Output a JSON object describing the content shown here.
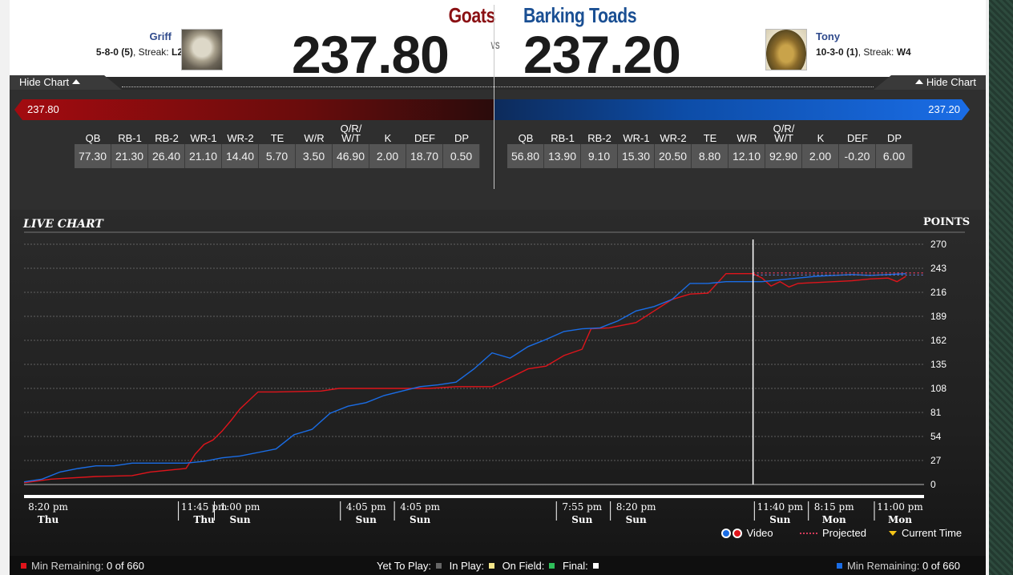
{
  "header": {
    "left": {
      "team": "Goats",
      "score": "237.80",
      "owner": "Griff",
      "record": "5-8-0",
      "rank": "(5)",
      "streak_label": ", Streak: ",
      "streak": "L2"
    },
    "vs": "VS",
    "right": {
      "team": "Barking Toads",
      "score": "237.20",
      "owner": "Tony",
      "record": "10-3-0",
      "rank": "(1)",
      "streak_label": ", Streak: ",
      "streak": "W4"
    }
  },
  "tabs": {
    "left": "Hide Chart",
    "right": "Hide Chart"
  },
  "bars": {
    "left": "237.80",
    "right": "237.20"
  },
  "stats": {
    "headers": [
      "QB",
      "RB-1",
      "RB-2",
      "WR-1",
      "WR-2",
      "TE",
      "W/R",
      "Q/R/\nW/T",
      "K",
      "DEF",
      "DP"
    ],
    "left": [
      "77.30",
      "21.30",
      "26.40",
      "21.10",
      "14.40",
      "5.70",
      "3.50",
      "46.90",
      "2.00",
      "18.70",
      "0.50"
    ],
    "right": [
      "56.80",
      "13.90",
      "9.10",
      "15.30",
      "20.50",
      "8.80",
      "12.10",
      "92.90",
      "2.00",
      "-0.20",
      "6.00"
    ]
  },
  "chart": {
    "title": "LIVE CHART",
    "points_label": "POINTS",
    "legend": {
      "video": "Video",
      "projected": "Projected",
      "current_time": "Current Time"
    }
  },
  "chart_data": {
    "type": "line",
    "title": "LIVE CHART",
    "ylabel": "POINTS",
    "ylim": [
      0,
      270
    ],
    "y_ticks": [
      0,
      27,
      54,
      81,
      108,
      135,
      162,
      189,
      216,
      243,
      270
    ],
    "x_ticks": [
      {
        "time": "8:20 pm",
        "day": "Thu"
      },
      {
        "time": "11:45 pm",
        "day": "Thu"
      },
      {
        "time": "1:00 pm",
        "day": "Sun"
      },
      {
        "time": "4:05 pm",
        "day": "Sun"
      },
      {
        "time": "4:05 pm",
        "day": "Sun"
      },
      {
        "time": "7:55 pm",
        "day": "Sun"
      },
      {
        "time": "8:20 pm",
        "day": "Sun"
      },
      {
        "time": "11:40 pm",
        "day": "Sun"
      },
      {
        "time": "8:15 pm",
        "day": "Mon"
      },
      {
        "time": "11:00 pm",
        "day": "Mon"
      }
    ],
    "x_range": [
      0,
      100
    ],
    "current_time_x": 81,
    "series": [
      {
        "name": "Goats",
        "color": "#e0141b",
        "points": [
          [
            0,
            2
          ],
          [
            3,
            6
          ],
          [
            8,
            9
          ],
          [
            12,
            10
          ],
          [
            14,
            14
          ],
          [
            16,
            16
          ],
          [
            18,
            18
          ],
          [
            19,
            34
          ],
          [
            20,
            45
          ],
          [
            21,
            50
          ],
          [
            22,
            60
          ],
          [
            23,
            72
          ],
          [
            24,
            85
          ],
          [
            26,
            104
          ],
          [
            28,
            104
          ],
          [
            33,
            105
          ],
          [
            35,
            108
          ],
          [
            45,
            108
          ],
          [
            48,
            110
          ],
          [
            52,
            110
          ],
          [
            54,
            120
          ],
          [
            56,
            130
          ],
          [
            58,
            133
          ],
          [
            60,
            145
          ],
          [
            62,
            152
          ],
          [
            63,
            175
          ],
          [
            65,
            176
          ],
          [
            68,
            182
          ],
          [
            70,
            195
          ],
          [
            72,
            208
          ],
          [
            74,
            214
          ],
          [
            76,
            215
          ],
          [
            78,
            237
          ],
          [
            80,
            237
          ],
          [
            81,
            237
          ],
          [
            82,
            232
          ],
          [
            83,
            223
          ],
          [
            84,
            228
          ],
          [
            85,
            222
          ],
          [
            86,
            226
          ],
          [
            88,
            227
          ],
          [
            90,
            228
          ],
          [
            92,
            229
          ],
          [
            94,
            231
          ],
          [
            96,
            232
          ],
          [
            97,
            228
          ],
          [
            98,
            234
          ]
        ]
      },
      {
        "name": "Barking Toads",
        "color": "#1a6de6",
        "points": [
          [
            0,
            3
          ],
          [
            2,
            6
          ],
          [
            4,
            14
          ],
          [
            6,
            18
          ],
          [
            8,
            21
          ],
          [
            10,
            21
          ],
          [
            12,
            24
          ],
          [
            14,
            24
          ],
          [
            16,
            24
          ],
          [
            18,
            24
          ],
          [
            20,
            26
          ],
          [
            22,
            30
          ],
          [
            24,
            32
          ],
          [
            26,
            36
          ],
          [
            28,
            40
          ],
          [
            30,
            56
          ],
          [
            32,
            62
          ],
          [
            34,
            80
          ],
          [
            36,
            88
          ],
          [
            38,
            92
          ],
          [
            40,
            100
          ],
          [
            42,
            105
          ],
          [
            44,
            110
          ],
          [
            46,
            112
          ],
          [
            48,
            115
          ],
          [
            50,
            130
          ],
          [
            52,
            148
          ],
          [
            54,
            142
          ],
          [
            56,
            155
          ],
          [
            58,
            163
          ],
          [
            60,
            172
          ],
          [
            62,
            175
          ],
          [
            64,
            176
          ],
          [
            66,
            184
          ],
          [
            68,
            195
          ],
          [
            70,
            200
          ],
          [
            72,
            208
          ],
          [
            74,
            226
          ],
          [
            76,
            226
          ],
          [
            78,
            228
          ],
          [
            80,
            228
          ],
          [
            82,
            228
          ],
          [
            84,
            230
          ],
          [
            86,
            232
          ],
          [
            88,
            234
          ],
          [
            90,
            235
          ],
          [
            92,
            236
          ],
          [
            94,
            235
          ],
          [
            96,
            236
          ],
          [
            98,
            237
          ]
        ]
      }
    ],
    "projected": {
      "name": "Projected",
      "goats": 237.8,
      "barking_toads": 237.2
    }
  },
  "footer": {
    "min_remaining_label": "Min Remaining:",
    "left_value": "0 of 660",
    "right_value": "0 of 660",
    "yet_to_play": "Yet To Play:",
    "in_play": "In Play:",
    "on_field": "On Field:",
    "final": "Final:"
  },
  "colors": {
    "goats": "#8a1013",
    "toads": "#1a4f93",
    "red_line": "#e0141b",
    "blue_line": "#1a6de6"
  }
}
